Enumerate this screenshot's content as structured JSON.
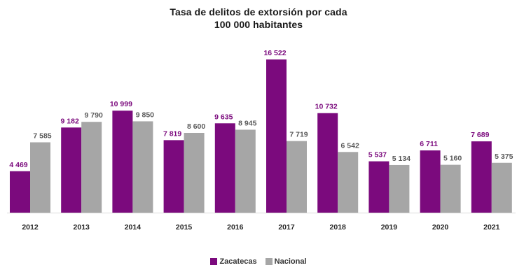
{
  "chart_data": {
    "type": "bar",
    "title": [
      "Tasa de delitos de extorsión por cada",
      "100 000 habitantes"
    ],
    "categories": [
      "2012",
      "2013",
      "2014",
      "2015",
      "2016",
      "2017",
      "2018",
      "2019",
      "2020",
      "2021"
    ],
    "series": [
      {
        "name": "Zacatecas",
        "color": "#7B0A7D",
        "label_color": "#7B0A7D",
        "values": [
          4469,
          9182,
          10999,
          7819,
          9635,
          16522,
          10732,
          5537,
          6711,
          7689
        ],
        "labels": [
          "4 469",
          "9 182",
          "10 999",
          "7 819",
          "9 635",
          "16 522",
          "10 732",
          "5 537",
          "6 711",
          "7 689"
        ]
      },
      {
        "name": "Nacional",
        "color": "#A6A6A6",
        "label_color": "#595959",
        "values": [
          7585,
          9790,
          9850,
          8600,
          8945,
          7719,
          6542,
          5134,
          5160,
          5375
        ],
        "labels": [
          "7 585",
          "9 790",
          "9 850",
          "8 600",
          "8 945",
          "7 719",
          "6 542",
          "5 134",
          "5 160",
          "5 375"
        ]
      }
    ],
    "ylim": [
      0,
      16522
    ],
    "xlabel": "",
    "ylabel": "",
    "grid": false,
    "legend_position": "bottom"
  }
}
